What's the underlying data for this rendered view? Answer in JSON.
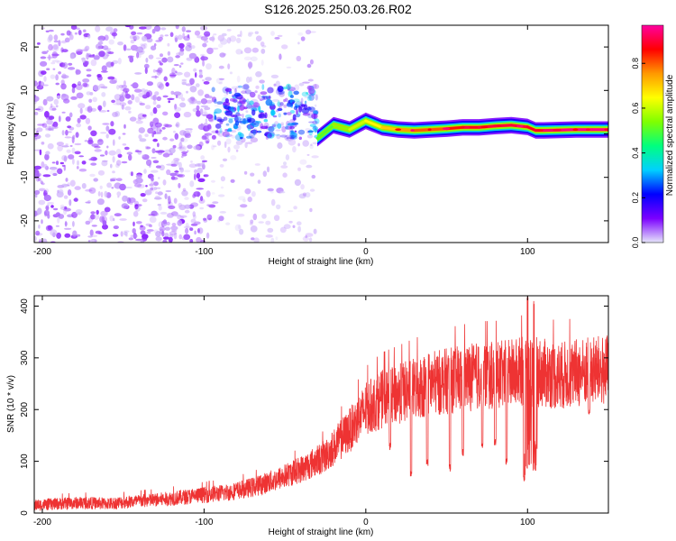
{
  "title": "S126.2025.250.03.26.R02",
  "chart_data": [
    {
      "type": "heatmap",
      "name": "spectrogram",
      "xlabel": "Height of straight line (km)",
      "ylabel": "Frequency (Hz)",
      "xlim": [
        -205,
        150
      ],
      "ylim": [
        -25,
        25
      ],
      "xticks": [
        -200,
        -100,
        0,
        100
      ],
      "yticks": [
        -20,
        -10,
        0,
        10,
        20
      ],
      "colorbar": {
        "label": "Normalized spectral amplitude",
        "range": [
          0,
          0.97
        ],
        "ticks": [
          0.0,
          0.2,
          0.4,
          0.6,
          0.8
        ],
        "colormap": [
          "#e6e6fa",
          "#7b00ff",
          "#0000ff",
          "#00d0ff",
          "#00ff7f",
          "#7fff00",
          "#ffff00",
          "#ff9900",
          "#ff0000",
          "#ff00a0"
        ]
      },
      "regions": [
        {
          "x": [
            -205,
            -95
          ],
          "freq": [
            -25,
            25
          ],
          "amplitude": 0.05,
          "description": "diffuse noise"
        },
        {
          "x": [
            -95,
            -30
          ],
          "freq": [
            -25,
            25
          ],
          "amplitude": 0.03,
          "description": "sparse noise"
        },
        {
          "x": [
            -95,
            -30
          ],
          "freq": [
            -1,
            11
          ],
          "amplitude": 0.18,
          "description": "broad signal onset"
        },
        {
          "x": [
            -30,
            150
          ],
          "freq": [
            0,
            3
          ],
          "amplitude": 0.85,
          "description": "narrow carrier line"
        }
      ],
      "carrier_line": {
        "x": [
          -30,
          -20,
          -10,
          0,
          10,
          20,
          30,
          40,
          50,
          60,
          70,
          80,
          90,
          100,
          105,
          110,
          120,
          130,
          140,
          150
        ],
        "freq": [
          -1,
          2,
          1,
          3,
          1.5,
          1,
          0.8,
          1,
          1.2,
          1.5,
          1.5,
          1.8,
          2,
          1.6,
          0.8,
          0.8,
          0.9,
          1,
          1,
          1
        ],
        "amplitude": [
          0.5,
          0.55,
          0.6,
          0.65,
          0.7,
          0.75,
          0.8,
          0.8,
          0.85,
          0.88,
          0.9,
          0.9,
          0.9,
          0.88,
          0.92,
          0.93,
          0.95,
          0.95,
          0.95,
          0.95
        ]
      }
    },
    {
      "type": "line",
      "name": "snr",
      "xlabel": "Height of straight line (km)",
      "ylabel": "SNR (10 * v/v)",
      "xlim": [
        -205,
        150
      ],
      "ylim": [
        0,
        420
      ],
      "xticks": [
        -200,
        -100,
        0,
        100
      ],
      "yticks": [
        0,
        100,
        200,
        300,
        400
      ],
      "color": "#ee3333",
      "series": [
        {
          "name": "SNR",
          "x": [
            -205,
            -190,
            -175,
            -160,
            -145,
            -130,
            -115,
            -100,
            -85,
            -70,
            -55,
            -40,
            -25,
            -10,
            0,
            10,
            20,
            30,
            40,
            50,
            60,
            70,
            80,
            90,
            100,
            110,
            120,
            130,
            140,
            150
          ],
          "y": [
            15,
            18,
            20,
            18,
            22,
            25,
            30,
            35,
            40,
            50,
            65,
            85,
            110,
            160,
            200,
            220,
            230,
            240,
            250,
            255,
            260,
            265,
            265,
            270,
            275,
            270,
            265,
            270,
            275,
            275
          ]
        }
      ],
      "dips": [
        {
          "x": 15,
          "y": 120
        },
        {
          "x": 28,
          "y": 70
        },
        {
          "x": 38,
          "y": 90
        },
        {
          "x": 52,
          "y": 80
        },
        {
          "x": 60,
          "y": 110
        },
        {
          "x": 72,
          "y": 120
        },
        {
          "x": 80,
          "y": 130
        },
        {
          "x": 87,
          "y": 90
        },
        {
          "x": 98,
          "y": 60
        },
        {
          "x": 105,
          "y": 75
        },
        {
          "x": 138,
          "y": 190
        }
      ],
      "peaks": [
        {
          "x": 100,
          "y": 420
        },
        {
          "x": 104,
          "y": 410
        }
      ]
    }
  ]
}
